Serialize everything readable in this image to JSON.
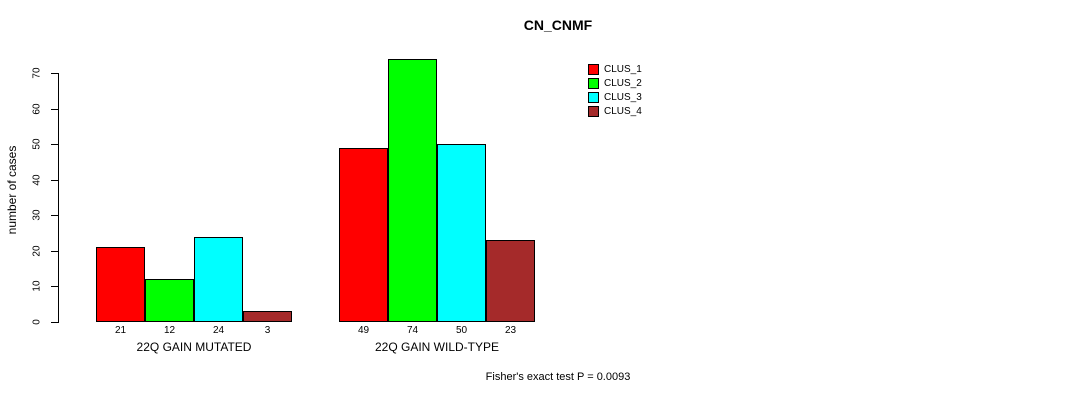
{
  "chart_data": {
    "type": "bar",
    "title": "CN_CNMF",
    "ylabel": "number of cases",
    "xlabel": "",
    "categories": [
      "22Q GAIN MUTATED",
      "22Q GAIN WILD-TYPE"
    ],
    "series": [
      {
        "name": "CLUS_1",
        "color": "#ff0000",
        "values": [
          21,
          49
        ]
      },
      {
        "name": "CLUS_2",
        "color": "#00ff00",
        "values": [
          12,
          74
        ]
      },
      {
        "name": "CLUS_3",
        "color": "#00ffff",
        "values": [
          24,
          50
        ]
      },
      {
        "name": "CLUS_4",
        "color": "#a52a2a",
        "values": [
          3,
          23
        ]
      }
    ],
    "yticks": [
      0,
      10,
      20,
      30,
      40,
      50,
      60,
      70
    ],
    "ylim": [
      0,
      70
    ],
    "grid": false,
    "bar_value_labels_shown": true,
    "legend_position": "top-right",
    "annotation": "Fisher's exact test P = 0.0093"
  },
  "colors": {
    "background": "#ffffff",
    "axis": "#000000",
    "bar_border": "#000000",
    "text": "#000000"
  }
}
